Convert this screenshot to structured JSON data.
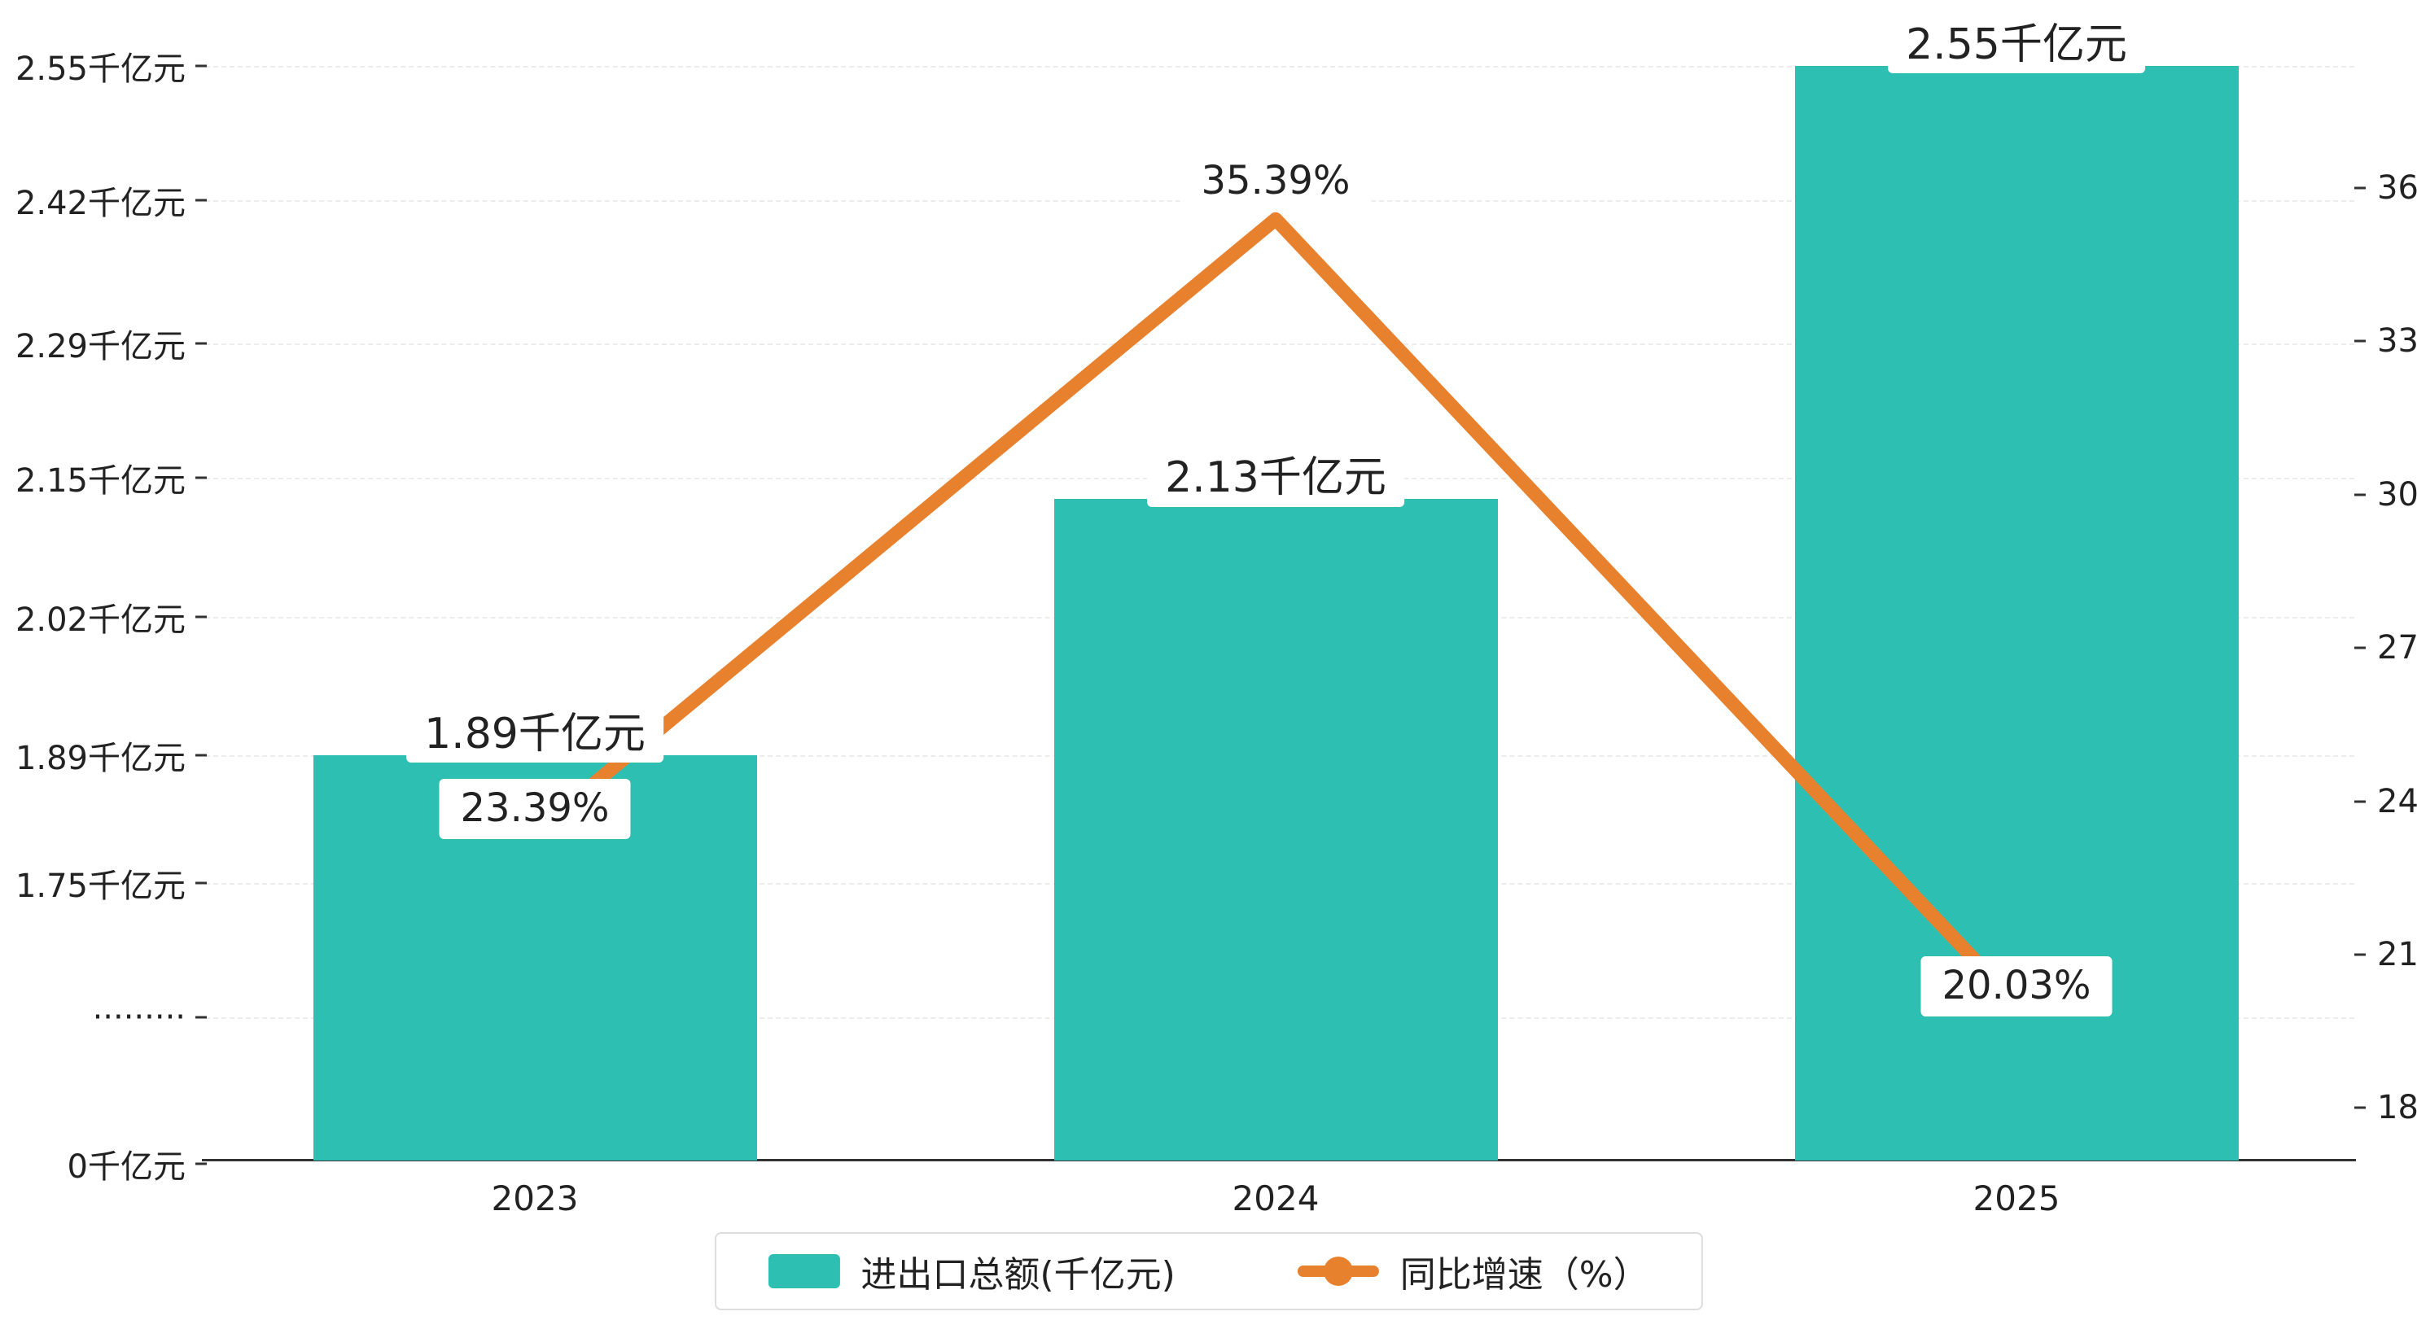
{
  "chart_data": {
    "type": "bar",
    "categories": [
      "2023",
      "2024",
      "2025"
    ],
    "series": [
      {
        "name": "进出口总额(千亿元)",
        "type": "bar",
        "values": [
          1.89,
          2.13,
          2.55
        ],
        "labels": [
          "1.89千亿元",
          "2.13千亿元",
          "2.55千亿元"
        ],
        "color": "#2ebfb3"
      },
      {
        "name": "同比增速（%）",
        "type": "line",
        "values": [
          23.39,
          35.39,
          20.03
        ],
        "labels": [
          "23.39%",
          "35.39%",
          "20.03%"
        ],
        "color": "#e8812d"
      }
    ],
    "left_axis": {
      "ticks": [
        "2.55千亿元",
        "2.42千亿元",
        "2.29千亿元",
        "2.15千亿元",
        "2.02千亿元",
        "1.89千亿元",
        "1.75千亿元",
        "·········",
        "0千亿元"
      ],
      "tick_values": [
        2.55,
        2.42,
        2.29,
        2.15,
        2.02,
        1.89,
        1.75,
        null,
        0
      ],
      "axis_break": true
    },
    "right_axis": {
      "ticks": [
        "36",
        "33",
        "30",
        "27",
        "24",
        "21",
        "18"
      ],
      "tick_values": [
        36,
        33,
        30,
        27,
        24,
        21,
        18
      ],
      "range": [
        18,
        37.5
      ]
    },
    "legend": [
      "进出口总额(千亿元)",
      "同比增速（%）"
    ],
    "grid": true,
    "legend_position": "bottom",
    "title": ""
  },
  "colors": {
    "bar": "#2ebfb3",
    "line": "#e8812d",
    "axis": "#333333",
    "gridline": "#ececec",
    "text": "#222222"
  }
}
